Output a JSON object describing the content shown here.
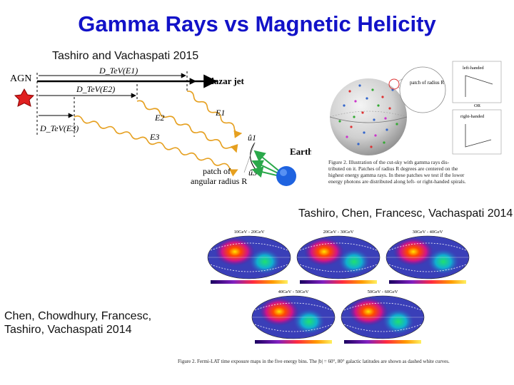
{
  "slide": {
    "title": "Gamma Rays vs Magnetic Helicity",
    "caption_top": "Tashiro and Vachaspati 2015",
    "caption_right": "Tashiro, Chen, Francesc, Vachaspati 2014",
    "caption_left_line1": "Chen, Chowdhury, Francesc,",
    "caption_left_line2": "Tashiro, Vachaspati 2014"
  },
  "jet_diagram": {
    "agn_label": "AGN",
    "blazar_label": "blazar jet",
    "earth_label": "Earth",
    "d1_label": "D_TeV(E1)",
    "d2_label": "D_TeV(E2)",
    "d3_label": "D_TeV(E3)",
    "e1_label": "E1",
    "e2_label": "E2",
    "e3_label": "E3",
    "u1_label": "û1",
    "u3_label": "û3",
    "patch_label_line1": "patch of",
    "patch_label_line2": "angular radius R",
    "colors": {
      "star": "#e02020",
      "photon": "#e6a020",
      "earth": "#1f63e0",
      "arrow": "#2aa84a"
    }
  },
  "sphere_figure": {
    "patch_label": "patch of radius R",
    "left_handed": "left-handed",
    "right_handed": "right-handed",
    "or_label": "OR",
    "figure_caption_line1": "Figure 2.  Illustration of the cut-sky with gamma rays dis-",
    "figure_caption_line2": "tributed on it. Patches of radius R degrees are centered on the",
    "figure_caption_line3": "highest energy gamma rays. In these patches we test if the lower",
    "figure_caption_line4": "energy photons are distributed along left- or right-handed spirals."
  },
  "exposure_maps": {
    "top_row": [
      {
        "header": "10GeV - 20GeV"
      },
      {
        "header": "20GeV - 30GeV"
      },
      {
        "header": "30GeV - 40GeV"
      }
    ],
    "bottom_row": [
      {
        "header": "40GeV - 50GeV"
      },
      {
        "header": "50GeV - 60GeV"
      }
    ],
    "figure_caption": "Figure 2. Fermi-LAT time exposure maps in the five energy bins. The |b| = 60°, 80° galactic latitudes are shown as dashed white curves."
  }
}
